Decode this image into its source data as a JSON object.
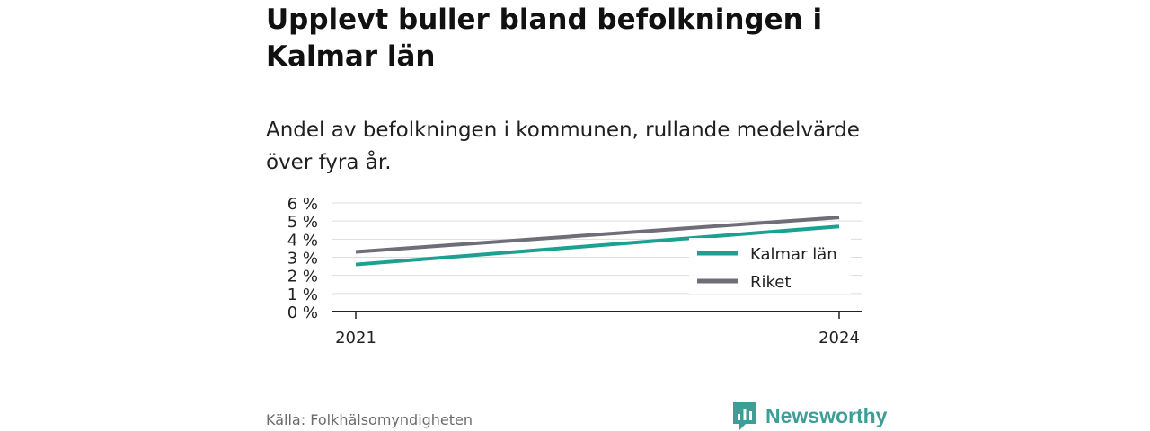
{
  "title": "Upplevt buller bland befolkningen i Kalmar län",
  "subtitle": "Andel av befolkningen i kommunen, rullande medelvärde över fyra år.",
  "source": "Källa: Folkhälsomyndigheten",
  "brand": "Newsworthy",
  "brand_icon": "bar-chart-logo-icon",
  "colors": {
    "kalmar": "#1aa192",
    "riket": "#6f6e78",
    "brand": "#3d9e97",
    "grid": "#dddddd",
    "axis": "#222222"
  },
  "chart_data": {
    "type": "line",
    "x": [
      "2021",
      "2024"
    ],
    "series": [
      {
        "name": "Kalmar län",
        "values": [
          2.6,
          4.7
        ]
      },
      {
        "name": "Riket",
        "values": [
          3.3,
          5.2
        ]
      }
    ],
    "ylim": [
      0,
      6
    ],
    "yticks": [
      "0 %",
      "1 %",
      "2 %",
      "3 %",
      "4 %",
      "5 %",
      "6 %"
    ],
    "grid": true,
    "legend": "right"
  }
}
